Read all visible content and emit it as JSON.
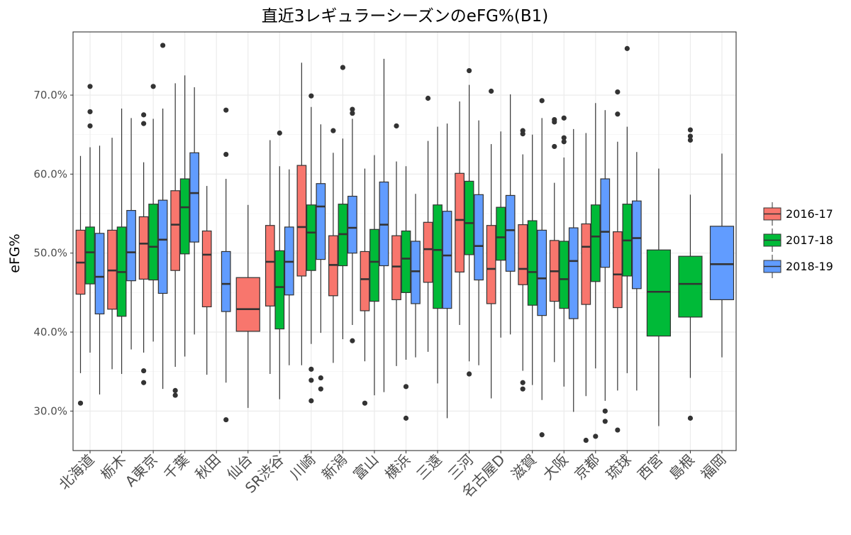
{
  "chart_data": {
    "type": "boxplot",
    "title": "直近3レギュラーシーズンのeFG%(B1)",
    "ylabel": "eFG%",
    "xlabel": "",
    "ylim": [
      25,
      78
    ],
    "yticks": [
      "30.0%",
      "40.0%",
      "50.0%",
      "60.0%",
      "70.0%"
    ],
    "ytick_values": [
      30,
      40,
      50,
      60,
      70
    ],
    "grid": true,
    "legend_position": "right",
    "categories": [
      "北海道",
      "栃木",
      "A東京",
      "千葉",
      "秋田",
      "仙台",
      "SR渋谷",
      "川崎",
      "新潟",
      "富山",
      "横浜",
      "三遠",
      "三河",
      "名古屋D",
      "滋賀",
      "大阪",
      "京都",
      "琉球",
      "西宮",
      "島根",
      "福岡"
    ],
    "series": [
      {
        "name": "2016-17",
        "color": "#F8766D",
        "boxes": [
          {
            "cat": "北海道",
            "min": 34.8,
            "q1": 44.8,
            "med": 48.8,
            "q3": 52.9,
            "max": 62.3,
            "outliers": [
              31.0
            ]
          },
          {
            "cat": "栃木",
            "min": 35.3,
            "q1": 42.9,
            "med": 47.8,
            "q3": 52.9,
            "max": 64.6,
            "outliers": []
          },
          {
            "cat": "A東京",
            "min": 37.4,
            "q1": 46.7,
            "med": 51.2,
            "q3": 54.6,
            "max": 61.5,
            "outliers": [
              35.1,
              33.6,
              67.5,
              66.4
            ]
          },
          {
            "cat": "千葉",
            "min": 35.6,
            "q1": 47.8,
            "med": 53.6,
            "q3": 57.9,
            "max": 71.5,
            "outliers": [
              32.6,
              32.0
            ]
          },
          {
            "cat": "秋田",
            "min": 34.6,
            "q1": 43.2,
            "med": 49.8,
            "q3": 52.8,
            "max": 58.5,
            "outliers": []
          },
          {
            "cat": "仙台",
            "min": 30.4,
            "q1": 40.1,
            "med": 42.9,
            "q3": 46.9,
            "max": 56.1,
            "outliers": []
          },
          {
            "cat": "SR渋谷",
            "min": 34.7,
            "q1": 43.3,
            "med": 48.9,
            "q3": 53.5,
            "max": 64.3,
            "outliers": []
          },
          {
            "cat": "川崎",
            "min": 35.8,
            "q1": 47.1,
            "med": 53.3,
            "q3": 61.1,
            "max": 74.1,
            "outliers": []
          },
          {
            "cat": "新潟",
            "min": 36.1,
            "q1": 44.6,
            "med": 48.5,
            "q3": 52.2,
            "max": 62.7,
            "outliers": [
              65.5
            ]
          },
          {
            "cat": "富山",
            "min": 36.3,
            "q1": 42.7,
            "med": 46.7,
            "q3": 50.2,
            "max": 60.7,
            "outliers": [
              31.0
            ]
          },
          {
            "cat": "横浜",
            "min": 35.7,
            "q1": 44.1,
            "med": 48.3,
            "q3": 52.2,
            "max": 61.6,
            "outliers": [
              66.1
            ]
          },
          {
            "cat": "三遠",
            "min": 37.5,
            "q1": 46.3,
            "med": 50.5,
            "q3": 53.9,
            "max": 64.2,
            "outliers": [
              69.6
            ]
          },
          {
            "cat": "三河",
            "min": 40.9,
            "q1": 47.6,
            "med": 54.2,
            "q3": 60.1,
            "max": 69.2,
            "outliers": []
          },
          {
            "cat": "名古屋D",
            "min": 31.6,
            "q1": 43.6,
            "med": 48.0,
            "q3": 53.5,
            "max": 63.8,
            "outliers": [
              70.5
            ]
          },
          {
            "cat": "滋賀",
            "min": 35.1,
            "q1": 46.0,
            "med": 48.0,
            "q3": 53.6,
            "max": 62.5,
            "outliers": [
              33.6,
              32.8,
              65.5,
              65.1
            ]
          },
          {
            "cat": "大阪",
            "min": 36.2,
            "q1": 43.9,
            "med": 47.7,
            "q3": 51.6,
            "max": 58.9,
            "outliers": [
              63.5,
              66.9,
              66.6
            ]
          },
          {
            "cat": "京都",
            "min": 31.9,
            "q1": 43.5,
            "med": 50.8,
            "q3": 53.7,
            "max": 65.2,
            "outliers": [
              26.3
            ]
          },
          {
            "cat": "琉球",
            "min": 32.6,
            "q1": 43.1,
            "med": 47.3,
            "q3": 52.7,
            "max": 64.1,
            "outliers": [
              27.6,
              67.6,
              70.4
            ]
          }
        ]
      },
      {
        "name": "2017-18",
        "color": "#00BA38",
        "boxes": [
          {
            "cat": "北海道",
            "min": 37.4,
            "q1": 46.1,
            "med": 50.1,
            "q3": 53.3,
            "max": 63.4,
            "outliers": [
              71.1,
              67.9,
              66.1
            ]
          },
          {
            "cat": "栃木",
            "min": 34.7,
            "q1": 42.0,
            "med": 47.6,
            "q3": 53.3,
            "max": 68.3,
            "outliers": []
          },
          {
            "cat": "A東京",
            "min": 38.8,
            "q1": 46.6,
            "med": 50.8,
            "q3": 56.2,
            "max": 67.0,
            "outliers": [
              71.1
            ]
          },
          {
            "cat": "千葉",
            "min": 36.9,
            "q1": 49.9,
            "med": 55.8,
            "q3": 59.4,
            "max": 72.5,
            "outliers": []
          },
          {
            "cat": "SR渋谷",
            "min": 31.5,
            "q1": 40.4,
            "med": 45.7,
            "q3": 50.3,
            "max": 61.0,
            "outliers": [
              65.2
            ]
          },
          {
            "cat": "川崎",
            "min": 38.5,
            "q1": 47.8,
            "med": 52.6,
            "q3": 56.1,
            "max": 68.5,
            "outliers": [
              35.3,
              33.9,
              31.3,
              69.9
            ]
          },
          {
            "cat": "新潟",
            "min": 39.1,
            "q1": 48.4,
            "med": 52.4,
            "q3": 56.2,
            "max": 64.5,
            "outliers": [
              73.5
            ]
          },
          {
            "cat": "富山",
            "min": 32.0,
            "q1": 43.9,
            "med": 48.9,
            "q3": 53.0,
            "max": 62.4,
            "outliers": []
          },
          {
            "cat": "横浜",
            "min": 36.5,
            "q1": 45.0,
            "med": 49.3,
            "q3": 52.8,
            "max": 61.0,
            "outliers": [
              33.1,
              29.1
            ]
          },
          {
            "cat": "三遠",
            "min": 33.5,
            "q1": 43.0,
            "med": 50.4,
            "q3": 56.1,
            "max": 66.0,
            "outliers": []
          },
          {
            "cat": "三河",
            "min": 36.3,
            "q1": 49.8,
            "med": 53.8,
            "q3": 59.1,
            "max": 71.3,
            "outliers": [
              34.7,
              73.1
            ]
          },
          {
            "cat": "名古屋D",
            "min": 39.3,
            "q1": 49.1,
            "med": 52.0,
            "q3": 55.8,
            "max": 65.4,
            "outliers": []
          },
          {
            "cat": "滋賀",
            "min": 33.3,
            "q1": 43.4,
            "med": 47.6,
            "q3": 54.1,
            "max": 65.0,
            "outliers": []
          },
          {
            "cat": "大阪",
            "min": 33.1,
            "q1": 43.0,
            "med": 46.7,
            "q3": 51.5,
            "max": 62.1,
            "outliers": [
              67.1,
              64.6,
              64.1
            ]
          },
          {
            "cat": "京都",
            "min": 35.4,
            "q1": 46.4,
            "med": 52.1,
            "q3": 56.1,
            "max": 69.0,
            "outliers": [
              26.8
            ]
          },
          {
            "cat": "琉球",
            "min": 34.8,
            "q1": 47.1,
            "med": 51.6,
            "q3": 56.2,
            "max": 66.0,
            "outliers": [
              75.9
            ]
          },
          {
            "cat": "西宮",
            "min": 28.1,
            "q1": 39.5,
            "med": 45.1,
            "q3": 50.4,
            "max": 60.7,
            "outliers": []
          },
          {
            "cat": "島根",
            "min": 34.2,
            "q1": 41.9,
            "med": 46.1,
            "q3": 49.6,
            "max": 57.4,
            "outliers": [
              29.1,
              65.6,
              64.8,
              64.3
            ]
          }
        ]
      },
      {
        "name": "2018-19",
        "color": "#619CFF",
        "boxes": [
          {
            "cat": "北海道",
            "min": 32.1,
            "q1": 42.3,
            "med": 47.0,
            "q3": 52.5,
            "max": 63.6,
            "outliers": []
          },
          {
            "cat": "栃木",
            "min": 37.8,
            "q1": 46.5,
            "med": 50.1,
            "q3": 55.4,
            "max": 67.1,
            "outliers": []
          },
          {
            "cat": "A東京",
            "min": 32.8,
            "q1": 44.9,
            "med": 51.7,
            "q3": 56.7,
            "max": 68.3,
            "outliers": [
              76.3
            ]
          },
          {
            "cat": "千葉",
            "min": 39.7,
            "q1": 51.4,
            "med": 57.6,
            "q3": 62.7,
            "max": 71.0,
            "outliers": []
          },
          {
            "cat": "秋田",
            "min": 33.6,
            "q1": 42.6,
            "med": 46.1,
            "q3": 50.2,
            "max": 59.4,
            "outliers": [
              28.9,
              68.1,
              62.5
            ]
          },
          {
            "cat": "SR渋谷",
            "min": 35.8,
            "q1": 44.7,
            "med": 48.9,
            "q3": 53.3,
            "max": 60.6,
            "outliers": []
          },
          {
            "cat": "川崎",
            "min": 39.9,
            "q1": 49.2,
            "med": 55.9,
            "q3": 58.8,
            "max": 66.3,
            "outliers": [
              34.2,
              32.8
            ]
          },
          {
            "cat": "新潟",
            "min": 40.9,
            "q1": 50.0,
            "med": 53.2,
            "q3": 57.2,
            "max": 67.0,
            "outliers": [
              38.9,
              68.2,
              67.7
            ]
          },
          {
            "cat": "富山",
            "min": 32.4,
            "q1": 48.4,
            "med": 53.6,
            "q3": 59.0,
            "max": 74.6,
            "outliers": []
          },
          {
            "cat": "横浜",
            "min": 36.8,
            "q1": 43.6,
            "med": 47.7,
            "q3": 51.5,
            "max": 57.5,
            "outliers": []
          },
          {
            "cat": "三遠",
            "min": 29.1,
            "q1": 43.0,
            "med": 49.7,
            "q3": 55.3,
            "max": 66.4,
            "outliers": []
          },
          {
            "cat": "三河",
            "min": 35.8,
            "q1": 46.6,
            "med": 50.9,
            "q3": 57.4,
            "max": 66.8,
            "outliers": []
          },
          {
            "cat": "名古屋D",
            "min": 39.7,
            "q1": 47.7,
            "med": 52.9,
            "q3": 57.3,
            "max": 70.1,
            "outliers": []
          },
          {
            "cat": "滋賀",
            "min": 31.4,
            "q1": 42.1,
            "med": 46.8,
            "q3": 52.9,
            "max": 67.1,
            "outliers": [
              27.0,
              69.3
            ]
          },
          {
            "cat": "大阪",
            "min": 29.9,
            "q1": 41.7,
            "med": 49.0,
            "q3": 53.2,
            "max": 65.7,
            "outliers": []
          },
          {
            "cat": "京都",
            "min": 31.3,
            "q1": 48.2,
            "med": 52.7,
            "q3": 59.4,
            "max": 68.1,
            "outliers": [
              30.0,
              28.7
            ]
          },
          {
            "cat": "琉球",
            "min": 32.6,
            "q1": 45.5,
            "med": 51.9,
            "q3": 56.6,
            "max": 62.8,
            "outliers": []
          },
          {
            "cat": "福岡",
            "min": 36.8,
            "q1": 44.1,
            "med": 48.6,
            "q3": 53.4,
            "max": 62.6,
            "outliers": []
          }
        ]
      }
    ]
  }
}
